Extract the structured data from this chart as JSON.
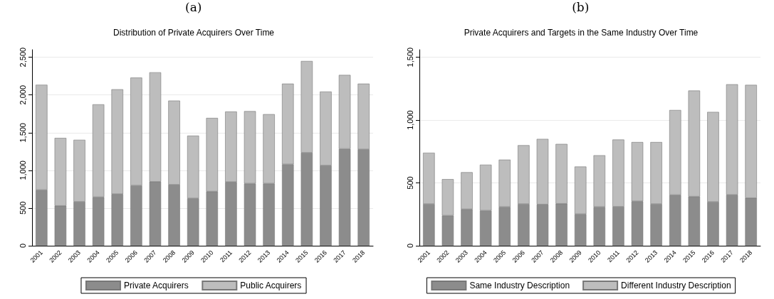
{
  "chart_data": [
    {
      "type": "bar",
      "title": "Distribution of Private Acquirers Over Time",
      "annotations": [
        "(a)"
      ],
      "categories": [
        "2001",
        "2002",
        "2003",
        "2004",
        "2005",
        "2006",
        "2007",
        "2008",
        "2009",
        "2010",
        "2011",
        "2012",
        "2013",
        "2014",
        "2015",
        "2016",
        "2017",
        "2018"
      ],
      "series": [
        {
          "name": "Private Acquirers",
          "color": "#8c8c8c",
          "values": [
            740,
            530,
            585,
            645,
            685,
            800,
            850,
            810,
            630,
            720,
            845,
            825,
            825,
            1080,
            1235,
            1065,
            1285,
            1280
          ]
        },
        {
          "name": "Public Acquirers",
          "color": "#bdbdbd",
          "values": [
            1395,
            900,
            820,
            1230,
            1390,
            1430,
            1450,
            1115,
            830,
            975,
            935,
            960,
            920,
            1070,
            1215,
            980,
            980,
            870
          ]
        }
      ],
      "stacked": true,
      "ylim": [
        0,
        2600
      ],
      "yticks": [
        0,
        {
          "value": 500,
          "label": "500"
        },
        {
          "value": 1000,
          "label": "1,000"
        },
        {
          "value": 1500,
          "label": "1,500"
        },
        {
          "value": 2000,
          "label": "2,000"
        },
        {
          "value": 2500,
          "label": "2,500"
        }
      ],
      "grid": "y",
      "legend": "bottom"
    },
    {
      "type": "bar",
      "title": "Private Acquirers and Targets in the Same Industry Over Time",
      "annotations": [
        "(b)"
      ],
      "categories": [
        "2001",
        "2002",
        "2003",
        "2004",
        "2005",
        "2006",
        "2007",
        "2008",
        "2009",
        "2010",
        "2011",
        "2012",
        "2013",
        "2014",
        "2015",
        "2016",
        "2017",
        "2018"
      ],
      "series": [
        {
          "name": "Same Industry Description",
          "color": "#8c8c8c",
          "values": [
            333,
            240,
            291,
            280,
            309,
            333,
            329,
            335,
            252,
            309,
            311,
            354,
            333,
            404,
            392,
            350,
            406,
            380
          ]
        },
        {
          "name": "Different Industry Description",
          "color": "#bdbdbd",
          "values": [
            407,
            290,
            294,
            365,
            376,
            467,
            521,
            475,
            378,
            411,
            534,
            471,
            492,
            676,
            843,
            715,
            879,
            900
          ]
        }
      ],
      "stacked": true,
      "ylim": [
        0,
        1560
      ],
      "yticks": [
        0,
        {
          "value": 500,
          "label": "500"
        },
        {
          "value": 1000,
          "label": "1,000"
        },
        {
          "value": 1500,
          "label": "1,500"
        }
      ],
      "grid": "y",
      "legend": "bottom"
    }
  ]
}
